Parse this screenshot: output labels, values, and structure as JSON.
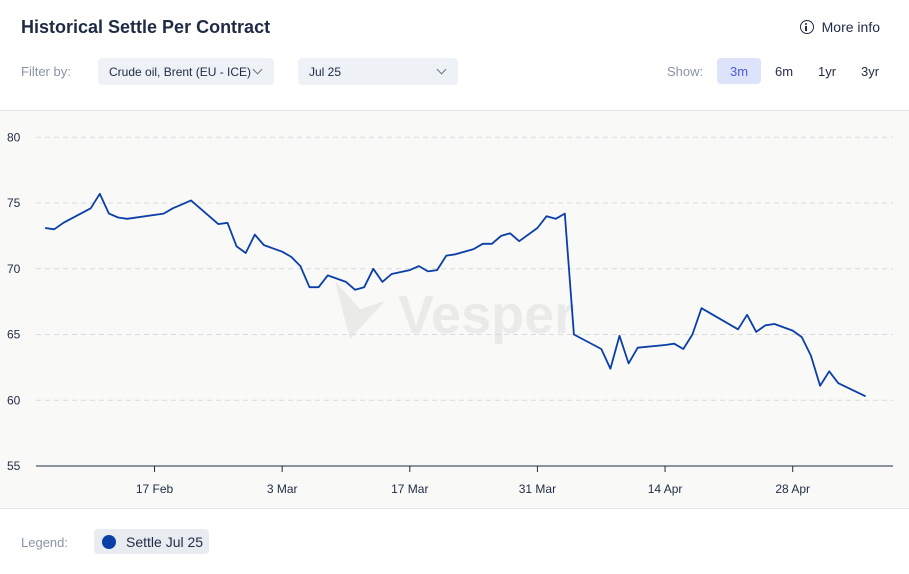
{
  "header": {
    "title": "Historical Settle Per Contract",
    "more_info": "More info",
    "info_icon": "info-icon"
  },
  "filters": {
    "label": "Filter by:",
    "commodity": "Crude oil, Brent (EU - ICE)",
    "contract": "Jul 25"
  },
  "range": {
    "label": "Show:",
    "options": [
      "3m",
      "6m",
      "1yr",
      "3yr"
    ],
    "selected": "3m",
    "accent_color": "#4a5ee0"
  },
  "legend": {
    "label": "Legend:",
    "items": [
      {
        "name": "Settle Jul 25",
        "color": "#0a3fa8"
      }
    ]
  },
  "watermark": "Vesper",
  "chart_data": {
    "type": "line",
    "title": "Historical Settle Per Contract",
    "xlabel": "",
    "ylabel": "",
    "ylim": [
      55,
      82
    ],
    "yticks": [
      55,
      60,
      65,
      70,
      75,
      80
    ],
    "xlim": [
      "2025-02-04",
      "2025-05-09"
    ],
    "xticks": [
      {
        "date": "2025-02-17",
        "label": "17 Feb"
      },
      {
        "date": "2025-03-03",
        "label": "3 Mar"
      },
      {
        "date": "2025-03-17",
        "label": "17 Mar"
      },
      {
        "date": "2025-03-31",
        "label": "31 Mar"
      },
      {
        "date": "2025-04-14",
        "label": "14 Apr"
      },
      {
        "date": "2025-04-28",
        "label": "28 Apr"
      }
    ],
    "grid": "horizontal-dashed",
    "series": [
      {
        "name": "Settle Jul 25",
        "color": "#0a3fa8",
        "points": [
          [
            "2025-02-05",
            73.1
          ],
          [
            "2025-02-06",
            73.0
          ],
          [
            "2025-02-07",
            73.5
          ],
          [
            "2025-02-10",
            74.6
          ],
          [
            "2025-02-11",
            75.7
          ],
          [
            "2025-02-12",
            74.2
          ],
          [
            "2025-02-13",
            73.9
          ],
          [
            "2025-02-14",
            73.8
          ],
          [
            "2025-02-18",
            74.2
          ],
          [
            "2025-02-19",
            74.6
          ],
          [
            "2025-02-20",
            74.9
          ],
          [
            "2025-02-21",
            75.2
          ],
          [
            "2025-02-24",
            73.4
          ],
          [
            "2025-02-25",
            73.5
          ],
          [
            "2025-02-26",
            71.7
          ],
          [
            "2025-02-27",
            71.2
          ],
          [
            "2025-02-28",
            72.6
          ],
          [
            "2025-03-01",
            71.8
          ],
          [
            "2025-03-03",
            71.3
          ],
          [
            "2025-03-04",
            70.9
          ],
          [
            "2025-03-05",
            70.2
          ],
          [
            "2025-03-06",
            68.6
          ],
          [
            "2025-03-07",
            68.6
          ],
          [
            "2025-03-08",
            69.5
          ],
          [
            "2025-03-10",
            69.0
          ],
          [
            "2025-03-11",
            68.4
          ],
          [
            "2025-03-12",
            68.6
          ],
          [
            "2025-03-13",
            70.0
          ],
          [
            "2025-03-14",
            69.0
          ],
          [
            "2025-03-15",
            69.6
          ],
          [
            "2025-03-17",
            69.9
          ],
          [
            "2025-03-18",
            70.2
          ],
          [
            "2025-03-19",
            69.8
          ],
          [
            "2025-03-20",
            69.9
          ],
          [
            "2025-03-21",
            71.0
          ],
          [
            "2025-03-22",
            71.1
          ],
          [
            "2025-03-24",
            71.5
          ],
          [
            "2025-03-25",
            71.9
          ],
          [
            "2025-03-26",
            71.9
          ],
          [
            "2025-03-27",
            72.5
          ],
          [
            "2025-03-28",
            72.7
          ],
          [
            "2025-03-29",
            72.1
          ],
          [
            "2025-03-31",
            73.1
          ],
          [
            "2025-04-01",
            74.0
          ],
          [
            "2025-04-02",
            73.8
          ],
          [
            "2025-04-03",
            74.2
          ],
          [
            "2025-04-04",
            65.0
          ],
          [
            "2025-04-07",
            63.9
          ],
          [
            "2025-04-08",
            62.4
          ],
          [
            "2025-04-09",
            64.9
          ],
          [
            "2025-04-10",
            62.8
          ],
          [
            "2025-04-11",
            64.0
          ],
          [
            "2025-04-14",
            64.2
          ],
          [
            "2025-04-15",
            64.3
          ],
          [
            "2025-04-16",
            63.9
          ],
          [
            "2025-04-17",
            65.0
          ],
          [
            "2025-04-18",
            67.0
          ],
          [
            "2025-04-22",
            65.4
          ],
          [
            "2025-04-23",
            66.5
          ],
          [
            "2025-04-24",
            65.2
          ],
          [
            "2025-04-25",
            65.7
          ],
          [
            "2025-04-26",
            65.8
          ],
          [
            "2025-04-28",
            65.3
          ],
          [
            "2025-04-29",
            64.8
          ],
          [
            "2025-04-30",
            63.4
          ],
          [
            "2025-05-01",
            61.1
          ],
          [
            "2025-05-02",
            62.2
          ],
          [
            "2025-05-03",
            61.3
          ],
          [
            "2025-05-06",
            60.3
          ]
        ]
      }
    ]
  }
}
